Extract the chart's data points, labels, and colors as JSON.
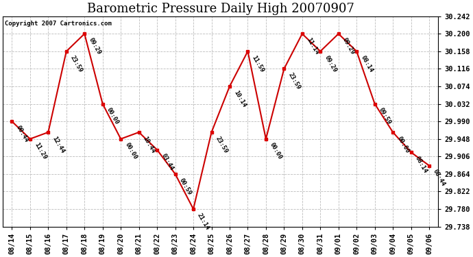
{
  "title": "Barometric Pressure Daily High 20070907",
  "copyright": "Copyright 2007 Cartronics.com",
  "x_labels": [
    "08/14",
    "08/15",
    "08/16",
    "08/17",
    "08/18",
    "08/19",
    "08/20",
    "08/21",
    "08/22",
    "08/23",
    "08/24",
    "08/25",
    "08/26",
    "08/27",
    "08/28",
    "08/29",
    "08/30",
    "08/31",
    "09/01",
    "09/02",
    "09/03",
    "09/04",
    "09/05",
    "09/06"
  ],
  "y_values": [
    29.99,
    29.948,
    29.964,
    30.158,
    30.2,
    30.032,
    29.948,
    29.964,
    29.922,
    29.864,
    29.78,
    29.964,
    30.074,
    30.158,
    29.948,
    30.116,
    30.2,
    30.158,
    30.2,
    30.158,
    30.032,
    29.964,
    29.916,
    29.884
  ],
  "time_labels": [
    "00:44",
    "11:29",
    "12:44",
    "23:59",
    "09:29",
    "00:00",
    "00:00",
    "10:44",
    "03:44",
    "00:59",
    "21:14",
    "23:59",
    "10:14",
    "11:59",
    "00:00",
    "23:59",
    "11:14",
    "09:29",
    "09:29",
    "08:14",
    "09:59",
    "00:00",
    "08:14",
    "08:44"
  ],
  "line_color": "#cc0000",
  "marker_color": "#dd0000",
  "background_color": "#ffffff",
  "grid_color": "#bbbbbb",
  "title_fontsize": 13,
  "label_fontsize": 7.5,
  "tick_fontsize": 7.5,
  "y_min": 29.738,
  "y_max": 30.242,
  "y_ticks": [
    29.738,
    29.78,
    29.822,
    29.864,
    29.906,
    29.948,
    29.99,
    30.032,
    30.074,
    30.116,
    30.158,
    30.2,
    30.242
  ]
}
